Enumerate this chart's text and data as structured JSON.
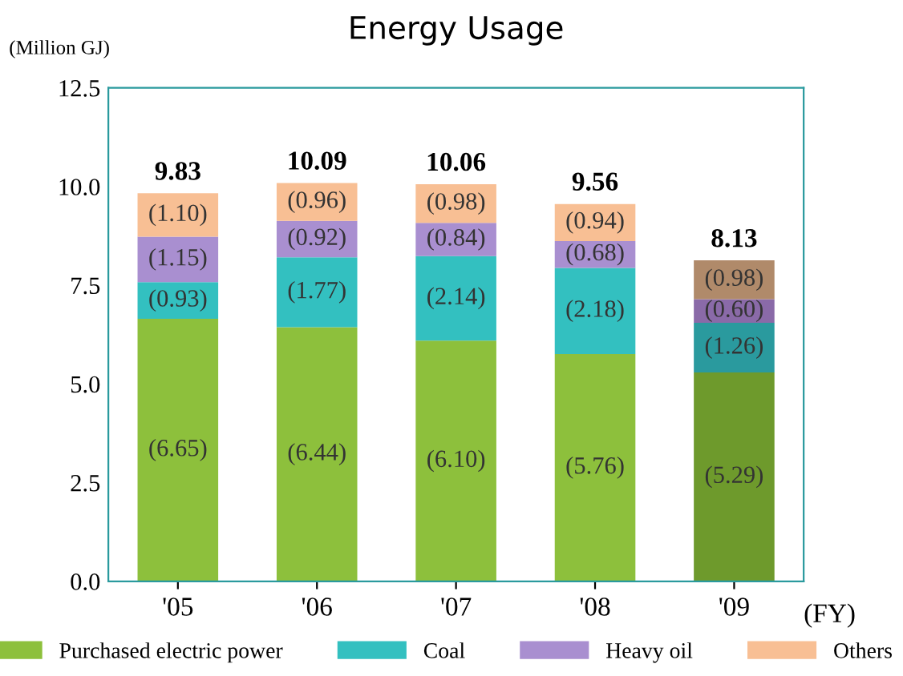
{
  "chart_data": {
    "type": "bar",
    "stacked": true,
    "title": "Energy Usage",
    "ylabel": "(Million GJ)",
    "xlabel": "(FY)",
    "categories": [
      "'05",
      "'06",
      "'07",
      "'08",
      "'09"
    ],
    "series": [
      {
        "name": "Purchased electric power",
        "color": "#8dc03c",
        "colors": [
          "#8dc03c",
          "#8dc03c",
          "#8dc03c",
          "#8dc03c",
          "#6e9a2c"
        ],
        "values": [
          6.65,
          6.44,
          6.1,
          5.76,
          5.29
        ],
        "value_labels": [
          "(6.65)",
          "(6.44)",
          "(6.10)",
          "(5.76)",
          "(5.29)"
        ]
      },
      {
        "name": "Coal",
        "color": "#33c0c0",
        "colors": [
          "#33c0c0",
          "#33c0c0",
          "#33c0c0",
          "#33c0c0",
          "#2a9a9e"
        ],
        "values": [
          0.93,
          1.77,
          2.14,
          2.18,
          1.26
        ],
        "value_labels": [
          "(0.93)",
          "(1.77)",
          "(2.14)",
          "(2.18)",
          "(1.26)"
        ]
      },
      {
        "name": "Heavy oil",
        "color": "#a98fd0",
        "colors": [
          "#a98fd0",
          "#a98fd0",
          "#a98fd0",
          "#a98fd0",
          "#8a6aa8"
        ],
        "values": [
          1.15,
          0.92,
          0.84,
          0.68,
          0.6
        ],
        "value_labels": [
          "(1.15)",
          "(0.92)",
          "(0.84)",
          "(0.68)",
          "(0.60)"
        ]
      },
      {
        "name": "Others",
        "color": "#f8bf94",
        "colors": [
          "#f8bf94",
          "#f8bf94",
          "#f8bf94",
          "#f8bf94",
          "#b08a6a"
        ],
        "values": [
          1.1,
          0.96,
          0.98,
          0.94,
          0.98
        ],
        "value_labels": [
          "(1.10)",
          "(0.96)",
          "(0.98)",
          "(0.94)",
          "(0.98)"
        ]
      }
    ],
    "totals": [
      "9.83",
      "10.09",
      "10.06",
      "9.56",
      "8.13"
    ],
    "ylim": [
      0,
      12.5
    ],
    "yticks": [
      {
        "value": 0,
        "label": "0.0"
      },
      {
        "value": 2.5,
        "label": "2.5"
      },
      {
        "value": 5,
        "label": "5.0"
      },
      {
        "value": 7.5,
        "label": "7.5"
      },
      {
        "value": 10,
        "label": "10.0"
      },
      {
        "value": 12.5,
        "label": "12.5"
      }
    ],
    "grid": false,
    "legend": "bottom"
  }
}
